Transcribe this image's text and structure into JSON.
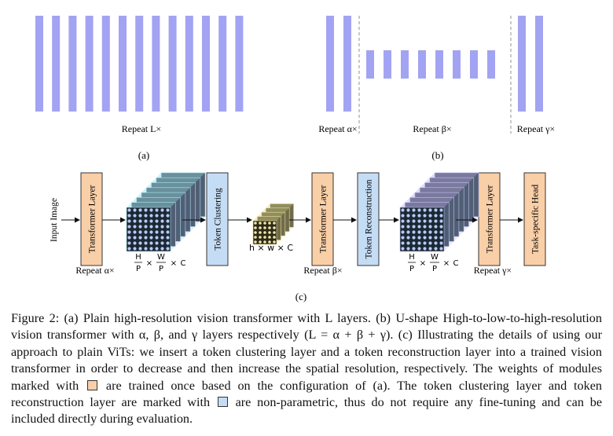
{
  "panel_a": {
    "repeat_label": "Repeat L×",
    "sublabel": "(a)",
    "bar_count": 13,
    "bar_color": "#a3a3f3"
  },
  "panel_b": {
    "repeat_alpha": "Repeat α×",
    "repeat_beta": "Repeat β×",
    "repeat_gamma": "Repeat γ×",
    "sublabel": "(b)",
    "alpha_bar_count": 2,
    "beta_bar_count": 8,
    "gamma_bar_count": 2,
    "bar_color": "#a3a3f3"
  },
  "panel_c": {
    "input_label": "Input Image",
    "blocks": [
      {
        "label": "Transformer Layer",
        "kind": "trained"
      },
      {
        "label": "Token Clustering",
        "kind": "nonparam"
      },
      {
        "label": "Transformer Layer",
        "kind": "trained"
      },
      {
        "label": "Token Reconstruction",
        "kind": "nonparam"
      },
      {
        "label": "Transformer Layer",
        "kind": "trained"
      },
      {
        "label": "Task-specific Head",
        "kind": "trained"
      }
    ],
    "repeat_alpha": "Repeat α×",
    "repeat_beta": "Repeat β×",
    "repeat_gamma": "Repeat γ×",
    "hwc_label": "h × w × C",
    "frac_H": "H",
    "frac_W": "W",
    "frac_P": "P",
    "times": "×",
    "C": "C",
    "sublabel": "(c)",
    "colors": {
      "trained_fill": "#f9cfa8",
      "nonparam_fill": "#c5dcf5",
      "cube_front": "#1b2733",
      "cube_top": "#a9e8f2",
      "cube_dots": "#b7c9f1",
      "small_cube_front": "#2c2a18",
      "small_cube_top": "#e8de9a",
      "small_cube_dots": "#f1e6a8"
    }
  },
  "caption": {
    "part1": "Figure 2: (a) Plain high-resolution vision transformer with L layers. (b) U-shape High-to-low-to-high-resolution vision transformer with α, β, and γ layers respectively (L = α + β + γ). (c) Illustrating the details of using our approach to plain ViTs: we insert a token clustering layer and a token reconstruction layer into a trained vision transformer in order to decrease and then increase the spatial resolution, respectively. The weights of modules marked with",
    "part2": "are trained once based on the configuration of (a). The token clustering layer and token reconstruction layer are marked with",
    "part3": "are non-parametric, thus do not require any fine-tuning and can be included directly during evaluation."
  }
}
